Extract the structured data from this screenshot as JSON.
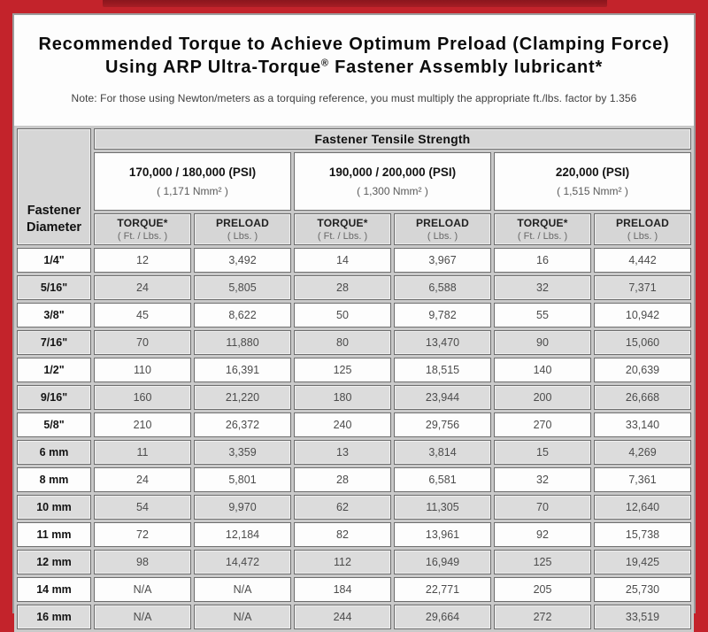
{
  "frame": {
    "background_color": "#c3232b",
    "top_stripe_color": "#8a161d",
    "panel_border_color": "#9c9c9c"
  },
  "title": {
    "line1": "Recommended Torque to Achieve Optimum Preload (Clamping Force)",
    "line2_pre": "Using ARP Ultra-Torque",
    "line2_sup": "®",
    "line2_post": " Fastener Assembly lubricant*",
    "note": "Note: For those using Newton/meters as a torquing reference, you must multiply the appropriate ft./lbs. factor by 1.356"
  },
  "table": {
    "corner_label_line1": "Fastener",
    "corner_label_line2": "Diameter",
    "group_header": "Fastener Tensile Strength",
    "strength_groups": [
      {
        "psi": "170,000 / 180,000 (PSI)",
        "nmm": "( 1,171 Nmm² )"
      },
      {
        "psi": "190,000 / 200,000 (PSI)",
        "nmm": "( 1,300 Nmm² )"
      },
      {
        "psi": "220,000 (PSI)",
        "nmm": "( 1,515 Nmm² )"
      }
    ],
    "col_headers": [
      {
        "label": "TORQUE*",
        "unit": "( Ft. / Lbs. )"
      },
      {
        "label": "PRELOAD",
        "unit": "( Lbs. )"
      },
      {
        "label": "TORQUE*",
        "unit": "( Ft. / Lbs. )"
      },
      {
        "label": "PRELOAD",
        "unit": "( Lbs. )"
      },
      {
        "label": "TORQUE*",
        "unit": "( Ft. / Lbs. )"
      },
      {
        "label": "PRELOAD",
        "unit": "( Lbs. )"
      }
    ],
    "rows": [
      {
        "label": "1/4\"",
        "values": [
          "12",
          "3,492",
          "14",
          "3,967",
          "16",
          "4,442"
        ]
      },
      {
        "label": "5/16\"",
        "values": [
          "24",
          "5,805",
          "28",
          "6,588",
          "32",
          "7,371"
        ]
      },
      {
        "label": "3/8\"",
        "values": [
          "45",
          "8,622",
          "50",
          "9,782",
          "55",
          "10,942"
        ]
      },
      {
        "label": "7/16\"",
        "values": [
          "70",
          "11,880",
          "80",
          "13,470",
          "90",
          "15,060"
        ]
      },
      {
        "label": "1/2\"",
        "values": [
          "110",
          "16,391",
          "125",
          "18,515",
          "140",
          "20,639"
        ]
      },
      {
        "label": "9/16\"",
        "values": [
          "160",
          "21,220",
          "180",
          "23,944",
          "200",
          "26,668"
        ]
      },
      {
        "label": "5/8\"",
        "values": [
          "210",
          "26,372",
          "240",
          "29,756",
          "270",
          "33,140"
        ]
      },
      {
        "label": "6 mm",
        "values": [
          "11",
          "3,359",
          "13",
          "3,814",
          "15",
          "4,269"
        ]
      },
      {
        "label": "8 mm",
        "values": [
          "24",
          "5,801",
          "28",
          "6,581",
          "32",
          "7,361"
        ]
      },
      {
        "label": "10 mm",
        "values": [
          "54",
          "9,970",
          "62",
          "11,305",
          "70",
          "12,640"
        ]
      },
      {
        "label": "11 mm",
        "values": [
          "72",
          "12,184",
          "82",
          "13,961",
          "92",
          "15,738"
        ]
      },
      {
        "label": "12 mm",
        "values": [
          "98",
          "14,472",
          "112",
          "16,949",
          "125",
          "19,425"
        ]
      },
      {
        "label": "14 mm",
        "values": [
          "N/A",
          "N/A",
          "184",
          "22,771",
          "205",
          "25,730"
        ]
      },
      {
        "label": "16 mm",
        "values": [
          "N/A",
          "N/A",
          "244",
          "29,664",
          "272",
          "33,519"
        ]
      }
    ]
  },
  "chart_data": {
    "type": "table",
    "title": "Recommended Torque to Achieve Optimum Preload (Clamping Force) Using ARP Ultra-Torque® Fastener Assembly lubricant*",
    "columns": [
      "Fastener Diameter",
      "170,000 / 180,000 (PSI) Torque (Ft./Lbs.)",
      "170,000 / 180,000 (PSI) Preload (Lbs.)",
      "190,000 / 200,000 (PSI) Torque (Ft./Lbs.)",
      "190,000 / 200,000 (PSI) Preload (Lbs.)",
      "220,000 (PSI) Torque (Ft./Lbs.)",
      "220,000 (PSI) Preload (Lbs.)"
    ],
    "rows": [
      [
        "1/4\"",
        12,
        3492,
        14,
        3967,
        16,
        4442
      ],
      [
        "5/16\"",
        24,
        5805,
        28,
        6588,
        32,
        7371
      ],
      [
        "3/8\"",
        45,
        8622,
        50,
        9782,
        55,
        10942
      ],
      [
        "7/16\"",
        70,
        11880,
        80,
        13470,
        90,
        15060
      ],
      [
        "1/2\"",
        110,
        16391,
        125,
        18515,
        140,
        20639
      ],
      [
        "9/16\"",
        160,
        21220,
        180,
        23944,
        200,
        26668
      ],
      [
        "5/8\"",
        210,
        26372,
        240,
        29756,
        270,
        33140
      ],
      [
        "6 mm",
        11,
        3359,
        13,
        3814,
        15,
        4269
      ],
      [
        "8 mm",
        24,
        5801,
        28,
        6581,
        32,
        7361
      ],
      [
        "10 mm",
        54,
        9970,
        62,
        11305,
        70,
        12640
      ],
      [
        "11 mm",
        72,
        12184,
        82,
        13961,
        92,
        15738
      ],
      [
        "12 mm",
        98,
        14472,
        112,
        16949,
        125,
        19425
      ],
      [
        "14 mm",
        null,
        null,
        184,
        22771,
        205,
        25730
      ],
      [
        "16 mm",
        null,
        null,
        244,
        29664,
        272,
        33519
      ]
    ]
  }
}
